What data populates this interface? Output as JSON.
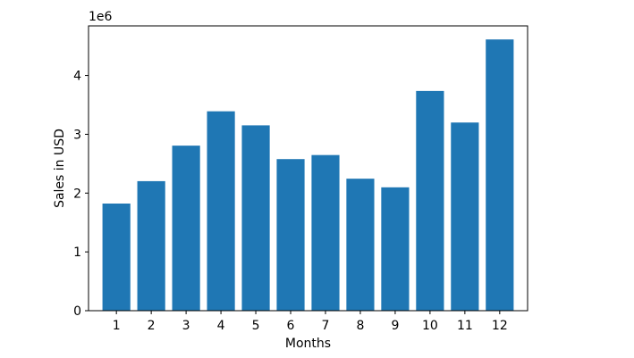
{
  "chart_data": {
    "type": "bar",
    "title": "",
    "xlabel": "Months",
    "ylabel": "Sales in USD",
    "y_offset_label": "1e6",
    "categories": [
      "1",
      "2",
      "3",
      "4",
      "5",
      "6",
      "7",
      "8",
      "9",
      "10",
      "11",
      "12"
    ],
    "values": [
      1822000,
      2203000,
      2807000,
      3391000,
      3152000,
      2578000,
      2647000,
      2245000,
      2098000,
      3737000,
      3200000,
      4613000
    ],
    "ylim": [
      0,
      4843650
    ],
    "y_ticks": [
      0,
      1000000,
      2000000,
      3000000,
      4000000
    ],
    "y_tick_labels": [
      "0",
      "1",
      "2",
      "3",
      "4"
    ],
    "bar_color": "#1f77b4",
    "grid": false,
    "legend": "none"
  }
}
